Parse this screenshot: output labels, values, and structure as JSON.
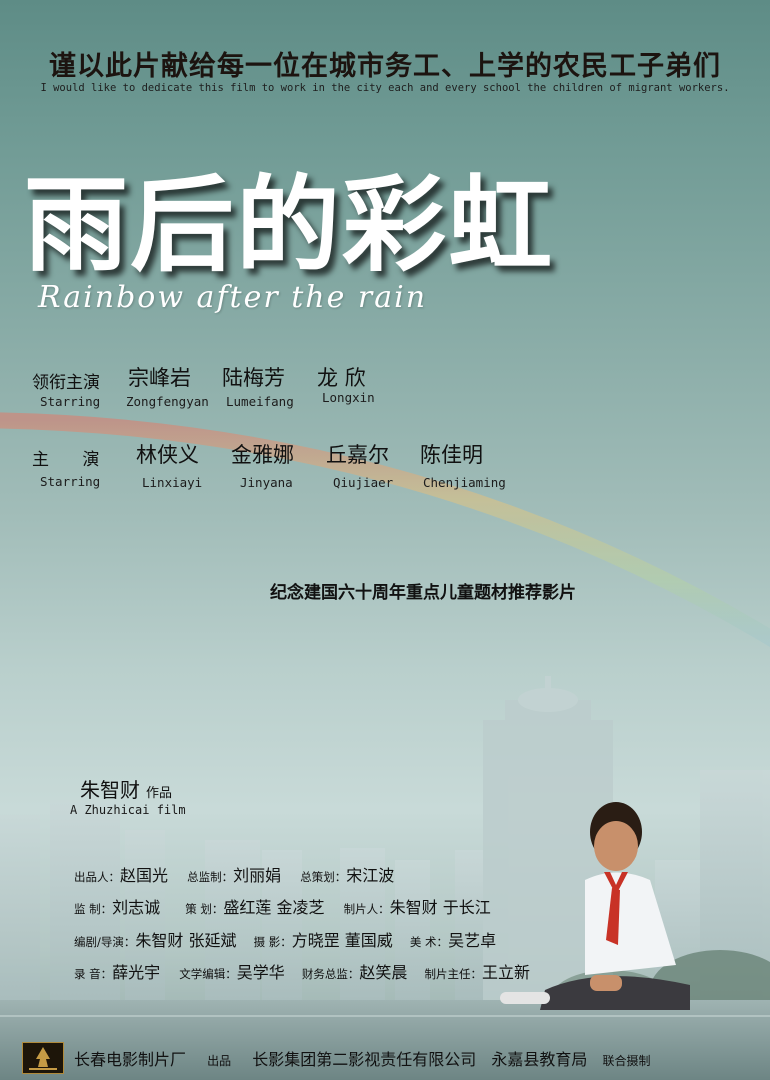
{
  "dedication_cn": "谨以此片献给每一位在城市务工、上学的农民工子弟们",
  "dedication_en": "I would like to dedicate this film to work in the city each and every school the children of migrant workers.",
  "title_cn": "雨后的彩虹",
  "title_en": "Rainbow after the rain",
  "lead_cast": {
    "label_cn": "领衔主演",
    "label_en": "Starring",
    "names": [
      {
        "cn": "宗峰岩",
        "en": "Zongfengyan"
      },
      {
        "cn": "陆梅芳",
        "en": "Lumeifang"
      },
      {
        "cn": "龙 欣",
        "en": "Longxin"
      }
    ]
  },
  "cast": {
    "label_cn": "主  演",
    "label_en": "Starring",
    "names": [
      {
        "cn": "林侠义",
        "en": "Linxiayi"
      },
      {
        "cn": "金雅娜",
        "en": "Jinyana"
      },
      {
        "cn": "丘嘉尔",
        "en": "Qiujiaer"
      },
      {
        "cn": "陈佳明",
        "en": "Chenjiaming"
      }
    ]
  },
  "tagline": "纪念建国六十周年重点儿童题材推荐影片",
  "director": {
    "cn": "朱智财",
    "suffix": "作品",
    "en": "A Zhuzhicai film"
  },
  "crew": {
    "row1": {
      "producer_role": "出品人：",
      "producer": "赵国光",
      "supervisor_role": "总监制：",
      "supervisor": "刘丽娟",
      "planner_role": "总策划：",
      "planner": "宋江波"
    },
    "row2": {
      "supervise_role": "监  制：",
      "supervise": "刘志诚",
      "plan_role": "策  划：",
      "plan": "盛红莲 金凌芝",
      "make_role": "制片人：",
      "make": "朱智财 于长江"
    },
    "row3": {
      "writer_role": "编剧/导演：",
      "writer": "朱智财 张延斌",
      "photo_role": "摄  影：",
      "photo": "方晓罡 董国威",
      "art_role": "美  术：",
      "art": "吴艺卓"
    },
    "row4": {
      "sound_role": "录  音：",
      "sound": "薛光宇",
      "lit_role": "文学编辑：",
      "lit": "吴学华",
      "fin_role": "财务总监：",
      "fin": "赵笑晨",
      "pm_role": "制片主任：",
      "pm": "王立新"
    }
  },
  "footer": {
    "studio": "长春电影制片厂",
    "produce": "出品",
    "partner1": "长影集团第二影视责任有限公司",
    "partner2": "永嘉县教育局",
    "joint": "联合摄制",
    "logo_text": "长春电影制片厂"
  }
}
